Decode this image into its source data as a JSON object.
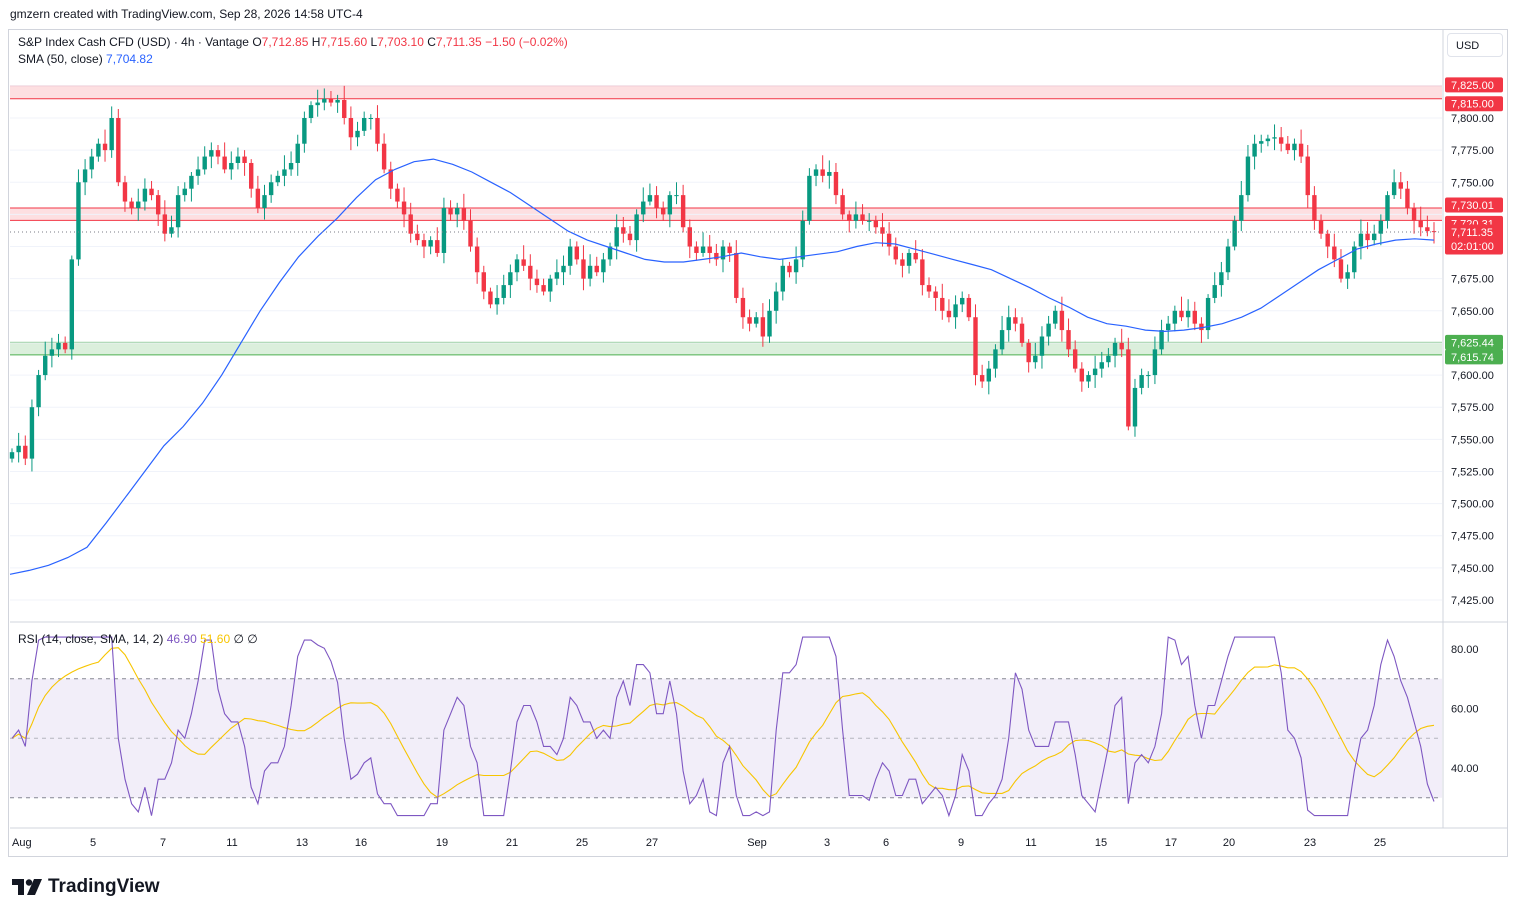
{
  "header": {
    "created_by": "gmzern created with TradingView.com, Sep 28, 2026 14:58 UTC-4"
  },
  "symbol": {
    "name": "S&P Index Cash CFD (USD) · 4h · Vantage",
    "open_label": "O",
    "open": "7,712.85",
    "high_label": "H",
    "high": "7,715.60",
    "low_label": "L",
    "low": "7,703.10",
    "close_label": "C",
    "close": "7,711.35",
    "change": "−1.50 (−0.02%)"
  },
  "sma_legend": {
    "label": "SMA (50, close)",
    "value": "7,704.82"
  },
  "rsi_legend": {
    "label": "RSI (14, close, SMA, 14, 2)",
    "rsi": "46.90",
    "rsi_ma": "51.60",
    "extra1": "∅",
    "extra2": "∅"
  },
  "currency_button": "USD",
  "brand": "TradingView",
  "colors": {
    "up": "#089981",
    "down": "#f23645",
    "sma": "#2962ff",
    "rsi": "#7e57c2",
    "rsi_ma": "#f7c500",
    "resistance_zone": "#f23645",
    "support_zone": "#4caf50"
  },
  "chart_data": {
    "type": "candlestick",
    "timeframe": "4h",
    "y_ticks": [
      "7,800.00",
      "7,775.00",
      "7,750.00",
      "7,675.00",
      "7,650.00",
      "7,600.00",
      "7,575.00",
      "7,550.00",
      "7,525.00",
      "7,500.00",
      "7,475.00",
      "7,450.00",
      "7,425.00"
    ],
    "ylim": [
      7410,
      7845
    ],
    "x_labels": [
      "Aug",
      "5",
      "7",
      "11",
      "13",
      "16",
      "19",
      "21",
      "25",
      "27",
      "Sep",
      "3",
      "6",
      "9",
      "11",
      "15",
      "17",
      "20",
      "23",
      "25"
    ],
    "price_badges": [
      {
        "label": "7,825.00",
        "value": 7825,
        "kind": "zone-red"
      },
      {
        "label": "7,815.00",
        "value": 7815,
        "kind": "zone-red"
      },
      {
        "label": "7,730.01",
        "value": 7730.01,
        "kind": "zone-red"
      },
      {
        "label": "7,720.31",
        "value": 7720.31,
        "kind": "zone-red"
      },
      {
        "label": "7,711.35",
        "value": 7711.35,
        "kind": "last",
        "countdown": "02:01:00"
      },
      {
        "label": "7,625.44",
        "value": 7625.44,
        "kind": "zone-green"
      },
      {
        "label": "7,615.74",
        "value": 7615.74,
        "kind": "zone-green"
      }
    ],
    "zones": [
      {
        "from": 7815,
        "to": 7825,
        "color": "red"
      },
      {
        "from": 7720.31,
        "to": 7730.01,
        "color": "red"
      },
      {
        "from": 7615.74,
        "to": 7625.44,
        "color": "green"
      }
    ],
    "close": [
      7540,
      7545,
      7535,
      7575,
      7600,
      7615,
      7620,
      7625,
      7620,
      7690,
      7750,
      7760,
      7770,
      7780,
      7775,
      7800,
      7750,
      7735,
      7730,
      7735,
      7745,
      7740,
      7725,
      7710,
      7715,
      7740,
      7745,
      7755,
      7760,
      7770,
      7775,
      7770,
      7760,
      7765,
      7770,
      7765,
      7745,
      7730,
      7740,
      7750,
      7755,
      7760,
      7765,
      7780,
      7800,
      7810,
      7812,
      7815,
      7812,
      7814,
      7800,
      7785,
      7790,
      7800,
      7800,
      7780,
      7760,
      7745,
      7735,
      7725,
      7710,
      7705,
      7700,
      7705,
      7695,
      7730,
      7725,
      7730,
      7720,
      7700,
      7680,
      7665,
      7655,
      7660,
      7670,
      7680,
      7690,
      7685,
      7675,
      7670,
      7665,
      7675,
      7680,
      7685,
      7700,
      7690,
      7675,
      7685,
      7680,
      7690,
      7700,
      7715,
      7710,
      7705,
      7725,
      7735,
      7740,
      7730,
      7725,
      7740,
      7740,
      7715,
      7700,
      7695,
      7700,
      7695,
      7690,
      7700,
      7695,
      7660,
      7645,
      7640,
      7645,
      7630,
      7650,
      7665,
      7685,
      7680,
      7690,
      7720,
      7755,
      7760,
      7755,
      7758,
      7740,
      7725,
      7720,
      7725,
      7720,
      7720,
      7715,
      7710,
      7700,
      7690,
      7685,
      7695,
      7690,
      7670,
      7665,
      7660,
      7650,
      7645,
      7655,
      7660,
      7645,
      7600,
      7595,
      7605,
      7620,
      7635,
      7645,
      7640,
      7625,
      7610,
      7615,
      7630,
      7640,
      7650,
      7635,
      7620,
      7605,
      7595,
      7600,
      7605,
      7610,
      7615,
      7625,
      7620,
      7560,
      7590,
      7600,
      7600,
      7620,
      7635,
      7640,
      7650,
      7645,
      7650,
      7640,
      7635,
      7660,
      7670,
      7680,
      7700,
      7720,
      7740,
      7770,
      7780,
      7782,
      7784,
      7785,
      7780,
      7775,
      7780,
      7770,
      7740,
      7720,
      7710,
      7700,
      7690,
      7675,
      7680,
      7700,
      7710,
      7705,
      7710,
      7720,
      7740,
      7750,
      7745,
      7730,
      7720,
      7715,
      7712,
      7711.35
    ],
    "sma_50": [
      7445,
      7448,
      7452,
      7458,
      7466,
      7485,
      7505,
      7525,
      7545,
      7560,
      7578,
      7600,
      7625,
      7650,
      7672,
      7692,
      7708,
      7722,
      7738,
      7752,
      7760,
      7766,
      7768,
      7764,
      7758,
      7750,
      7742,
      7732,
      7722,
      7712,
      7705,
      7700,
      7695,
      7690,
      7688,
      7688,
      7690,
      7692,
      7695,
      7692,
      7690,
      7692,
      7694,
      7696,
      7700,
      7703,
      7702,
      7698,
      7694,
      7690,
      7686,
      7682,
      7675,
      7668,
      7660,
      7653,
      7645,
      7640,
      7638,
      7635,
      7634,
      7635,
      7637,
      7640,
      7645,
      7652,
      7662,
      7672,
      7682,
      7690,
      7698,
      7702,
      7705,
      7706,
      7705
    ],
    "sma_note": "",
    "rsi": {
      "ylim": [
        20,
        90
      ],
      "ticks": [
        "80.00",
        "60.00",
        "40.00"
      ],
      "bands": {
        "upper": 70,
        "middle": 50,
        "lower": 30
      },
      "last": 46.9,
      "ma_last": 51.6
    }
  }
}
